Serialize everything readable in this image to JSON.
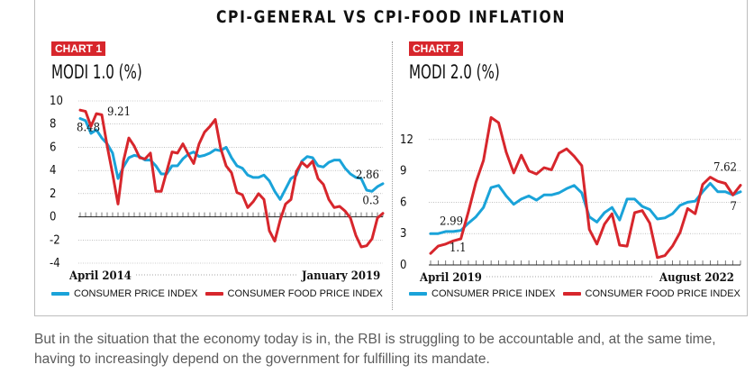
{
  "title": "CPI-GENERAL VS CPI-FOOD INFLATION",
  "caption": "But in the situation that the economy today is in, the RBI is struggling to be accountable and, at the same time, having to increasingly depend on the government for fulfilling its mandate.",
  "colors": {
    "cpi": "#1aa3d9",
    "food": "#d7262c",
    "badge": "#d7262c"
  },
  "panels": [
    {
      "badge": "CHART 1",
      "subtitle": "MODI 1.0 (%)",
      "legend": [
        "CONSUMER PRICE INDEX",
        "CONSUMER FOOD PRICE INDEX"
      ]
    },
    {
      "badge": "CHART 2",
      "subtitle": "MODI 2.0 (%)",
      "legend": [
        "CONSUMER PRICE INDEX",
        "CONSUMER FOOD PRICE INDEX"
      ]
    }
  ],
  "chart_data": [
    {
      "type": "line",
      "title": "MODI 1.0 (%)",
      "x_start_label": "April 2014",
      "x_end_label": "January 2019",
      "ylim": [
        -4,
        10
      ],
      "yticks": [
        10,
        8,
        6,
        4,
        2,
        0,
        -2,
        -4
      ],
      "series": [
        {
          "name": "CONSUMER PRICE INDEX",
          "values": [
            8.48,
            8.3,
            7.2,
            7.5,
            6.8,
            6.3,
            5.5,
            3.3,
            4.3,
            5.1,
            5.3,
            5.2,
            4.9,
            4.9,
            4.4,
            3.7,
            3.7,
            4.4,
            4.4,
            5.0,
            5.4,
            5.6,
            5.2,
            5.3,
            5.5,
            5.8,
            5.7,
            6.0,
            5.1,
            4.4,
            4.2,
            3.6,
            3.4,
            3.4,
            3.6,
            3.1,
            2.2,
            1.5,
            2.4,
            3.3,
            3.6,
            4.8,
            5.2,
            5.1,
            4.4,
            4.3,
            4.7,
            4.9,
            4.9,
            4.2,
            3.7,
            3.4,
            3.3,
            2.3,
            2.2,
            2.6,
            2.86
          ],
          "labels": [
            {
              "index": 0,
              "text": "8.48"
            },
            {
              "index": 56,
              "text": "2.86"
            }
          ]
        },
        {
          "name": "CONSUMER FOOD PRICE INDEX",
          "values": [
            9.21,
            9.1,
            7.8,
            8.9,
            8.8,
            6.1,
            3.7,
            1.1,
            4.8,
            6.8,
            6.1,
            5.1,
            5.0,
            5.5,
            2.2,
            2.2,
            3.9,
            5.6,
            5.5,
            6.3,
            5.4,
            4.6,
            6.3,
            7.3,
            7.8,
            8.4,
            5.9,
            4.4,
            3.8,
            2.1,
            1.9,
            0.8,
            1.3,
            2.0,
            1.5,
            -1.2,
            -2.1,
            -0.3,
            1.1,
            1.5,
            3.9,
            4.7,
            4.3,
            4.8,
            3.3,
            2.8,
            1.5,
            0.8,
            0.9,
            0.5,
            -0.1,
            -1.6,
            -2.6,
            -2.5,
            -1.9,
            -0.1,
            0.3
          ],
          "labels": [
            {
              "index": 0,
              "text": "9.21"
            },
            {
              "index": 56,
              "text": "0.3"
            }
          ]
        }
      ]
    },
    {
      "type": "line",
      "title": "MODI 2.0 (%)",
      "x_start_label": "April 2019",
      "x_end_label": "August 2022",
      "ylim": [
        0,
        15
      ],
      "yticks": [
        12,
        9,
        6,
        3,
        0
      ],
      "series": [
        {
          "name": "CONSUMER PRICE INDEX",
          "values": [
            2.99,
            3.0,
            3.2,
            3.2,
            3.3,
            4.0,
            4.6,
            5.5,
            7.4,
            7.6,
            6.6,
            5.8,
            6.3,
            6.6,
            6.2,
            6.7,
            6.7,
            6.9,
            7.3,
            7.6,
            6.9,
            4.6,
            4.1,
            5.0,
            5.5,
            4.3,
            6.3,
            6.3,
            5.6,
            5.3,
            4.4,
            4.5,
            4.9,
            5.7,
            6.0,
            6.1,
            7.0,
            7.8,
            7.0,
            7.0,
            6.7,
            7.0
          ],
          "labels": [
            {
              "index": 0,
              "text": "2.99"
            },
            {
              "index": 41,
              "text": "7"
            }
          ]
        },
        {
          "name": "CONSUMER FOOD PRICE INDEX",
          "values": [
            1.1,
            1.8,
            2.0,
            2.3,
            2.5,
            5.1,
            7.9,
            10.0,
            14.1,
            13.6,
            10.8,
            8.8,
            10.5,
            9.0,
            8.7,
            9.3,
            9.1,
            10.7,
            11.1,
            10.4,
            9.5,
            3.4,
            2.0,
            3.9,
            4.9,
            1.9,
            1.8,
            5.0,
            5.2,
            4.0,
            0.7,
            0.9,
            1.8,
            3.1,
            5.4,
            4.9,
            7.7,
            8.4,
            8.0,
            7.8,
            6.7,
            7.62
          ],
          "labels": [
            {
              "index": 4,
              "text": "1.1"
            },
            {
              "index": 41,
              "text": "7.62"
            }
          ]
        }
      ]
    }
  ]
}
